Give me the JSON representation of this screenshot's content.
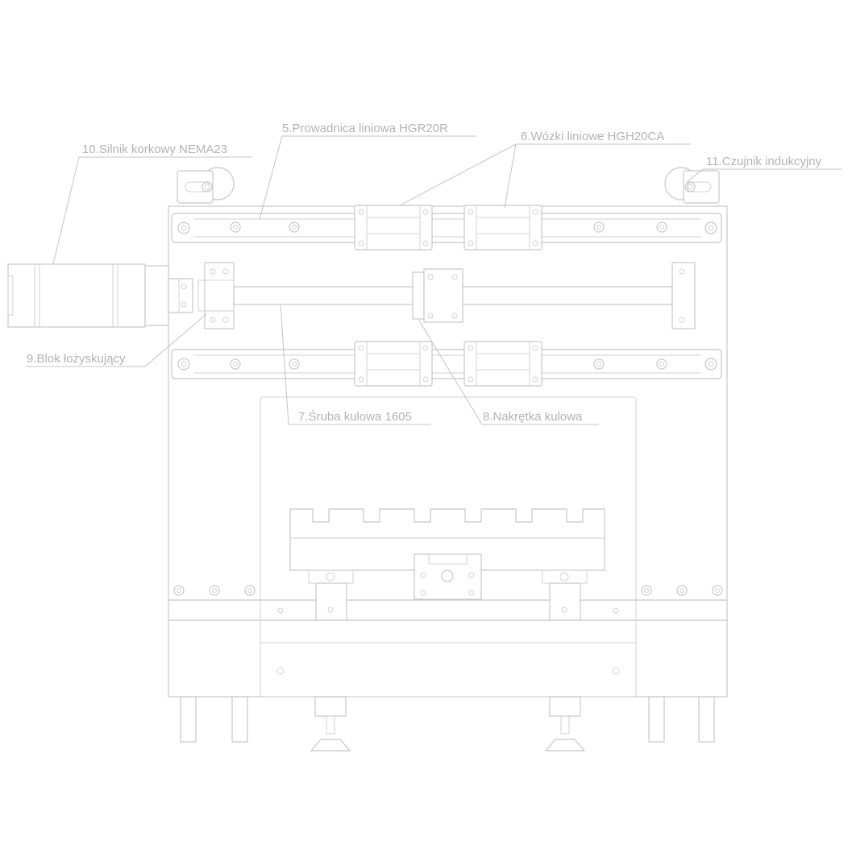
{
  "labels": {
    "l5": "5.Prowadnica liniowa HGR20R",
    "l6": "6.Wózki liniowe HGH20CA",
    "l10": "10.Silnik korkowy NEMA23",
    "l11": "11.Czujnik indukcyjny",
    "l9": "9.Blok łożyskujący",
    "l7": "7.Śruba kulowa 1605",
    "l8": "8.Nakrętka kulowa"
  },
  "colors": {
    "line": "#c8c8c8",
    "text": "#b3b3b3",
    "background": "#ffffff"
  }
}
